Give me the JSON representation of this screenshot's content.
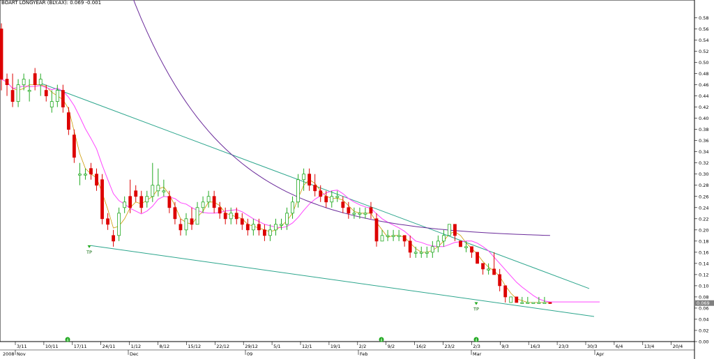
{
  "title": "BOART LONGYEAR  (BLY.AX): 0.069 -0.001",
  "chart_data": {
    "type": "candlestick",
    "security": "BOART LONGYEAR",
    "ticker": "BLY.AX",
    "last_price": "0.069",
    "change": "-0.001",
    "y_range": [
      0.0,
      0.6
    ],
    "y_ticks": [
      "0.58",
      "0.56",
      "0.54",
      "0.52",
      "0.50",
      "0.48",
      "0.46",
      "0.44",
      "0.42",
      "0.40",
      "0.38",
      "0.36",
      "0.34",
      "0.32",
      "0.30",
      "0.28",
      "0.26",
      "0.24",
      "0.22",
      "0.20",
      "0.18",
      "0.16",
      "0.14",
      "0.12",
      "0.10",
      "0.08",
      "0.06",
      "0.04",
      "0.02",
      "0.00"
    ],
    "price_label": "0.069",
    "date_ticks": [
      "3/11",
      "10/11",
      "17/11",
      "24/11",
      "1/12",
      "8/12",
      "15/12",
      "22/12",
      "29/12",
      "5/1",
      "12/1",
      "19/1",
      "2/2",
      "9/2",
      "16/2",
      "23/2",
      "2/3",
      "9/3",
      "16/3",
      "23/3",
      "30/3",
      "6/4",
      "13/4",
      "20/4"
    ],
    "month_ticks": [
      "2008",
      "Nov",
      "Dec",
      "09",
      "Feb",
      "Mar",
      "Apr"
    ],
    "annotations": [
      "TP",
      "TP"
    ],
    "event_markers": [
      "4",
      "4",
      "4"
    ],
    "candles": [
      {
        "o": 0.56,
        "h": 0.57,
        "l": 0.45,
        "c": 0.47
      },
      {
        "o": 0.47,
        "h": 0.48,
        "l": 0.44,
        "c": 0.46
      },
      {
        "o": 0.45,
        "h": 0.48,
        "l": 0.42,
        "c": 0.43
      },
      {
        "o": 0.43,
        "h": 0.47,
        "l": 0.42,
        "c": 0.46
      },
      {
        "o": 0.46,
        "h": 0.48,
        "l": 0.45,
        "c": 0.47
      },
      {
        "o": 0.45,
        "h": 0.47,
        "l": 0.43,
        "c": 0.45
      },
      {
        "o": 0.48,
        "h": 0.49,
        "l": 0.45,
        "c": 0.46
      },
      {
        "o": 0.46,
        "h": 0.48,
        "l": 0.44,
        "c": 0.47
      },
      {
        "o": 0.45,
        "h": 0.46,
        "l": 0.43,
        "c": 0.44
      },
      {
        "o": 0.42,
        "h": 0.45,
        "l": 0.41,
        "c": 0.43
      },
      {
        "o": 0.43,
        "h": 0.46,
        "l": 0.42,
        "c": 0.45
      },
      {
        "o": 0.45,
        "h": 0.46,
        "l": 0.41,
        "c": 0.42
      },
      {
        "o": 0.41,
        "h": 0.42,
        "l": 0.37,
        "c": 0.38
      },
      {
        "o": 0.37,
        "h": 0.38,
        "l": 0.32,
        "c": 0.33
      },
      {
        "o": 0.3,
        "h": 0.32,
        "l": 0.28,
        "c": 0.3
      },
      {
        "o": 0.3,
        "h": 0.31,
        "l": 0.29,
        "c": 0.3
      },
      {
        "o": 0.31,
        "h": 0.32,
        "l": 0.29,
        "c": 0.3
      },
      {
        "o": 0.3,
        "h": 0.31,
        "l": 0.27,
        "c": 0.28
      },
      {
        "o": 0.29,
        "h": 0.3,
        "l": 0.21,
        "c": 0.22
      },
      {
        "o": 0.22,
        "h": 0.23,
        "l": 0.2,
        "c": 0.21
      },
      {
        "o": 0.19,
        "h": 0.2,
        "l": 0.17,
        "c": 0.18
      },
      {
        "o": 0.19,
        "h": 0.24,
        "l": 0.18,
        "c": 0.23
      },
      {
        "o": 0.24,
        "h": 0.26,
        "l": 0.23,
        "c": 0.25
      },
      {
        "o": 0.26,
        "h": 0.29,
        "l": 0.23,
        "c": 0.24
      },
      {
        "o": 0.27,
        "h": 0.28,
        "l": 0.25,
        "c": 0.26
      },
      {
        "o": 0.26,
        "h": 0.27,
        "l": 0.23,
        "c": 0.24
      },
      {
        "o": 0.25,
        "h": 0.27,
        "l": 0.24,
        "c": 0.26
      },
      {
        "o": 0.26,
        "h": 0.32,
        "l": 0.25,
        "c": 0.28
      },
      {
        "o": 0.27,
        "h": 0.31,
        "l": 0.26,
        "c": 0.28
      },
      {
        "o": 0.27,
        "h": 0.29,
        "l": 0.26,
        "c": 0.27
      },
      {
        "o": 0.26,
        "h": 0.27,
        "l": 0.23,
        "c": 0.24
      },
      {
        "o": 0.24,
        "h": 0.25,
        "l": 0.21,
        "c": 0.22
      },
      {
        "o": 0.21,
        "h": 0.22,
        "l": 0.19,
        "c": 0.2
      },
      {
        "o": 0.2,
        "h": 0.23,
        "l": 0.19,
        "c": 0.22
      },
      {
        "o": 0.22,
        "h": 0.24,
        "l": 0.2,
        "c": 0.21
      },
      {
        "o": 0.21,
        "h": 0.25,
        "l": 0.21,
        "c": 0.24
      },
      {
        "o": 0.24,
        "h": 0.26,
        "l": 0.23,
        "c": 0.25
      },
      {
        "o": 0.25,
        "h": 0.27,
        "l": 0.24,
        "c": 0.26
      },
      {
        "o": 0.26,
        "h": 0.27,
        "l": 0.23,
        "c": 0.24
      },
      {
        "o": 0.24,
        "h": 0.25,
        "l": 0.22,
        "c": 0.23
      },
      {
        "o": 0.23,
        "h": 0.24,
        "l": 0.21,
        "c": 0.22
      },
      {
        "o": 0.22,
        "h": 0.24,
        "l": 0.21,
        "c": 0.23
      },
      {
        "o": 0.23,
        "h": 0.24,
        "l": 0.21,
        "c": 0.22
      },
      {
        "o": 0.22,
        "h": 0.23,
        "l": 0.2,
        "c": 0.21
      },
      {
        "o": 0.21,
        "h": 0.22,
        "l": 0.19,
        "c": 0.2
      },
      {
        "o": 0.2,
        "h": 0.22,
        "l": 0.19,
        "c": 0.21
      },
      {
        "o": 0.21,
        "h": 0.22,
        "l": 0.19,
        "c": 0.2
      },
      {
        "o": 0.2,
        "h": 0.21,
        "l": 0.18,
        "c": 0.19
      },
      {
        "o": 0.19,
        "h": 0.21,
        "l": 0.18,
        "c": 0.2
      },
      {
        "o": 0.2,
        "h": 0.22,
        "l": 0.19,
        "c": 0.21
      },
      {
        "o": 0.21,
        "h": 0.22,
        "l": 0.2,
        "c": 0.21
      },
      {
        "o": 0.21,
        "h": 0.24,
        "l": 0.2,
        "c": 0.23
      },
      {
        "o": 0.23,
        "h": 0.26,
        "l": 0.22,
        "c": 0.25
      },
      {
        "o": 0.25,
        "h": 0.3,
        "l": 0.24,
        "c": 0.29
      },
      {
        "o": 0.29,
        "h": 0.31,
        "l": 0.27,
        "c": 0.3
      },
      {
        "o": 0.3,
        "h": 0.31,
        "l": 0.27,
        "c": 0.28
      },
      {
        "o": 0.28,
        "h": 0.3,
        "l": 0.26,
        "c": 0.27
      },
      {
        "o": 0.27,
        "h": 0.28,
        "l": 0.25,
        "c": 0.26
      },
      {
        "o": 0.26,
        "h": 0.27,
        "l": 0.24,
        "c": 0.25
      },
      {
        "o": 0.25,
        "h": 0.27,
        "l": 0.24,
        "c": 0.26
      },
      {
        "o": 0.26,
        "h": 0.27,
        "l": 0.25,
        "c": 0.26
      },
      {
        "o": 0.25,
        "h": 0.26,
        "l": 0.23,
        "c": 0.24
      },
      {
        "o": 0.24,
        "h": 0.25,
        "l": 0.22,
        "c": 0.23
      },
      {
        "o": 0.23,
        "h": 0.24,
        "l": 0.22,
        "c": 0.23
      },
      {
        "o": 0.23,
        "h": 0.24,
        "l": 0.22,
        "c": 0.23
      },
      {
        "o": 0.23,
        "h": 0.24,
        "l": 0.22,
        "c": 0.23
      },
      {
        "o": 0.24,
        "h": 0.25,
        "l": 0.22,
        "c": 0.23
      },
      {
        "o": 0.22,
        "h": 0.23,
        "l": 0.17,
        "c": 0.18
      },
      {
        "o": 0.18,
        "h": 0.2,
        "l": 0.18,
        "c": 0.19
      },
      {
        "o": 0.19,
        "h": 0.2,
        "l": 0.18,
        "c": 0.19
      },
      {
        "o": 0.19,
        "h": 0.2,
        "l": 0.18,
        "c": 0.19
      },
      {
        "o": 0.19,
        "h": 0.2,
        "l": 0.18,
        "c": 0.19
      },
      {
        "o": 0.19,
        "h": 0.19,
        "l": 0.17,
        "c": 0.18
      },
      {
        "o": 0.18,
        "h": 0.19,
        "l": 0.15,
        "c": 0.16
      },
      {
        "o": 0.16,
        "h": 0.17,
        "l": 0.15,
        "c": 0.16
      },
      {
        "o": 0.16,
        "h": 0.17,
        "l": 0.15,
        "c": 0.16
      },
      {
        "o": 0.16,
        "h": 0.17,
        "l": 0.15,
        "c": 0.16
      },
      {
        "o": 0.16,
        "h": 0.18,
        "l": 0.15,
        "c": 0.17
      },
      {
        "o": 0.17,
        "h": 0.19,
        "l": 0.16,
        "c": 0.18
      },
      {
        "o": 0.18,
        "h": 0.2,
        "l": 0.17,
        "c": 0.19
      },
      {
        "o": 0.19,
        "h": 0.21,
        "l": 0.19,
        "c": 0.21
      },
      {
        "o": 0.21,
        "h": 0.21,
        "l": 0.18,
        "c": 0.19
      },
      {
        "o": 0.18,
        "h": 0.18,
        "l": 0.17,
        "c": 0.17
      },
      {
        "o": 0.17,
        "h": 0.18,
        "l": 0.16,
        "c": 0.17
      },
      {
        "o": 0.17,
        "h": 0.17,
        "l": 0.15,
        "c": 0.16
      },
      {
        "o": 0.16,
        "h": 0.16,
        "l": 0.14,
        "c": 0.14
      },
      {
        "o": 0.14,
        "h": 0.14,
        "l": 0.12,
        "c": 0.13
      },
      {
        "o": 0.13,
        "h": 0.14,
        "l": 0.12,
        "c": 0.13
      },
      {
        "o": 0.13,
        "h": 0.16,
        "l": 0.12,
        "c": 0.12
      },
      {
        "o": 0.12,
        "h": 0.13,
        "l": 0.09,
        "c": 0.1
      },
      {
        "o": 0.1,
        "h": 0.1,
        "l": 0.07,
        "c": 0.08
      },
      {
        "o": 0.07,
        "h": 0.08,
        "l": 0.07,
        "c": 0.08
      },
      {
        "o": 0.08,
        "h": 0.08,
        "l": 0.07,
        "c": 0.07
      },
      {
        "o": 0.07,
        "h": 0.08,
        "l": 0.07,
        "c": 0.07
      },
      {
        "o": 0.07,
        "h": 0.08,
        "l": 0.07,
        "c": 0.07
      },
      {
        "o": 0.07,
        "h": 0.07,
        "l": 0.07,
        "c": 0.07
      },
      {
        "o": 0.07,
        "h": 0.08,
        "l": 0.07,
        "c": 0.07
      },
      {
        "o": 0.07,
        "h": 0.08,
        "l": 0.07,
        "c": 0.07
      },
      {
        "o": 0.07,
        "h": 0.07,
        "l": 0.07,
        "c": 0.069
      }
    ],
    "trendlines": [
      {
        "name": "upper",
        "from": {
          "bar": 14,
          "y": 0.46
        },
        "to": {
          "bar": 92,
          "y": 0.095
        }
      },
      {
        "name": "lower",
        "from": {
          "bar": 28,
          "y": 0.172
        },
        "to": {
          "bar": 92,
          "y": 0.044
        }
      }
    ],
    "colors": {
      "up": "#22aa22",
      "down": "#dd0000",
      "ma_short": "#cc9900",
      "ma_mid": "#ff44ff",
      "ma_long": "#6a2a9a",
      "trend": "#2ba58c"
    }
  }
}
